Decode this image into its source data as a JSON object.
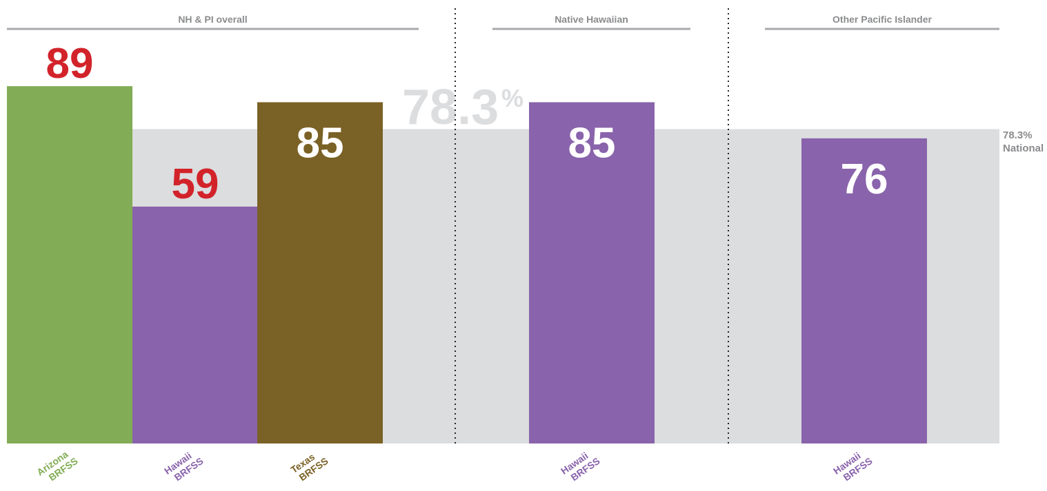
{
  "chart_data": {
    "type": "bar",
    "groups": [
      {
        "label": "NH & PI overall"
      },
      {
        "label": "Native Hawaiian"
      },
      {
        "label": "Other Pacific Islander"
      }
    ],
    "bars": [
      {
        "group": 0,
        "value": 89,
        "label_line1": "Arizona",
        "label_line2": "BRFSS",
        "color": "#82ac55",
        "value_color": "#d2232a",
        "value_inside": false
      },
      {
        "group": 0,
        "value": 59,
        "label_line1": "Hawaii",
        "label_line2": "BRFSS",
        "color": "#8963ab",
        "value_color": "#d2232a",
        "value_inside": false
      },
      {
        "group": 0,
        "value": 85,
        "label_line1": "Texas",
        "label_line2": "BRFSS",
        "color": "#7a6125",
        "value_color": "#ffffff",
        "value_inside": true
      },
      {
        "group": 1,
        "value": 85,
        "label_line1": "Hawaii",
        "label_line2": "BRFSS",
        "color": "#8963ab",
        "value_color": "#ffffff",
        "value_inside": true
      },
      {
        "group": 2,
        "value": 76,
        "label_line1": "Hawaii",
        "label_line2": "BRFSS",
        "color": "#8963ab",
        "value_color": "#ffffff",
        "value_inside": true
      }
    ],
    "reference": {
      "value": 78.3,
      "big_label": "78.3",
      "big_label_suffix": "%",
      "side_label_line1": "78.3%",
      "side_label_line2": "National",
      "color": "#dcdddf"
    },
    "ylim": [
      0,
      100
    ],
    "axis_label_color": "#8a8b8d"
  }
}
